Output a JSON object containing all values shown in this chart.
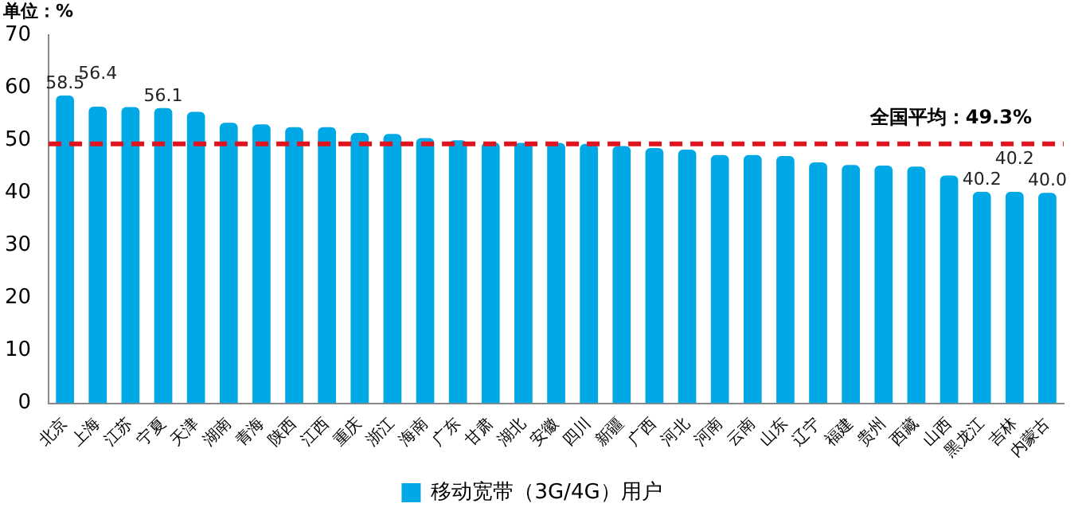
{
  "chart_data": {
    "type": "bar",
    "ylabel": "单位：%",
    "categories": [
      "北京",
      "上海",
      "江苏",
      "宁夏",
      "天津",
      "湖南",
      "青海",
      "陕西",
      "江西",
      "重庆",
      "浙江",
      "海南",
      "广东",
      "甘肃",
      "湖北",
      "安徽",
      "四川",
      "新疆",
      "广西",
      "河北",
      "河南",
      "云南",
      "山东",
      "辽宁",
      "福建",
      "贵州",
      "西藏",
      "山西",
      "黑龙江",
      "吉林",
      "内蒙古"
    ],
    "series": [
      {
        "name": "移动宽带（3G/4G）用户",
        "color": "#00a9e6",
        "values": [
          58.5,
          56.4,
          56.3,
          56.1,
          55.4,
          53.3,
          53.0,
          52.5,
          52.5,
          51.4,
          51.2,
          50.4,
          50.0,
          49.6,
          49.5,
          49.5,
          49.3,
          48.9,
          48.5,
          48.2,
          47.2,
          47.2,
          47.0,
          45.8,
          45.3,
          45.2,
          45.0,
          43.3,
          40.2,
          40.2,
          40.0
        ],
        "value_labels": [
          "58.5",
          "56.4",
          null,
          "56.1",
          null,
          null,
          null,
          null,
          null,
          null,
          null,
          null,
          null,
          null,
          null,
          null,
          null,
          null,
          null,
          null,
          null,
          null,
          null,
          null,
          null,
          null,
          null,
          null,
          "40.2",
          "40.2",
          "40.0"
        ]
      }
    ],
    "ylim": [
      0,
      70
    ],
    "yticks": [
      0,
      10,
      20,
      30,
      40,
      50,
      60,
      70
    ],
    "grid": false,
    "legend": "bottom",
    "ref_lines": [
      {
        "axis": "y",
        "value": 49.3,
        "label": "全国平均：49.3%",
        "color": "#e0141e",
        "line_style": "dashed"
      }
    ]
  }
}
